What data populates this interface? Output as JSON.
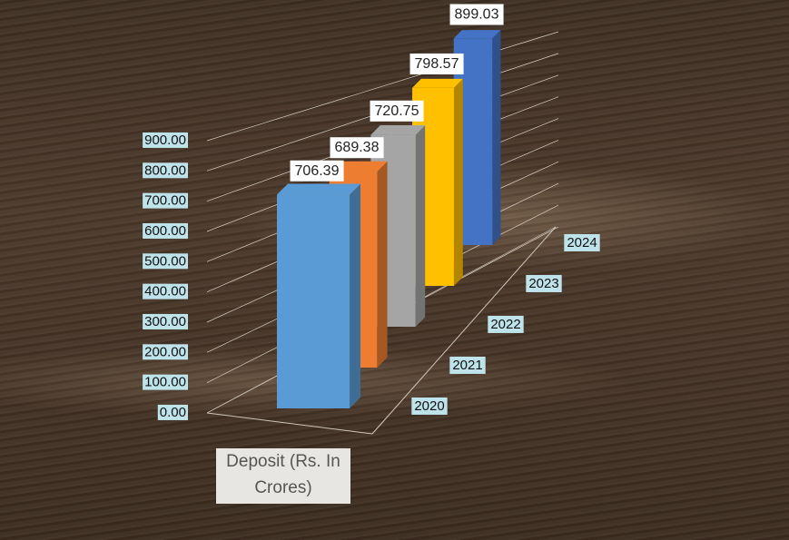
{
  "chart_data": {
    "type": "bar3d",
    "y_axis_label": "Deposit (Rs. In Crores)",
    "categories": [
      "2020",
      "2021",
      "2022",
      "2023",
      "2024"
    ],
    "values": [
      706.39,
      689.38,
      720.75,
      798.57,
      899.03
    ],
    "colors": [
      "#5b9bd5",
      "#ed7d31",
      "#a5a5a5",
      "#ffc000",
      "#4472c4"
    ],
    "ylim": [
      0,
      900
    ],
    "yticks": [
      {
        "value": 0,
        "label": "0.00"
      },
      {
        "value": 100,
        "label": "100.00"
      },
      {
        "value": 200,
        "label": "200.00"
      },
      {
        "value": 300,
        "label": "300.00"
      },
      {
        "value": 400,
        "label": "400.00"
      },
      {
        "value": 500,
        "label": "500.00"
      },
      {
        "value": 600,
        "label": "600.00"
      },
      {
        "value": 700,
        "label": "700.00"
      },
      {
        "value": 800,
        "label": "800.00"
      },
      {
        "value": 900,
        "label": "900.00"
      }
    ],
    "grid": true
  }
}
